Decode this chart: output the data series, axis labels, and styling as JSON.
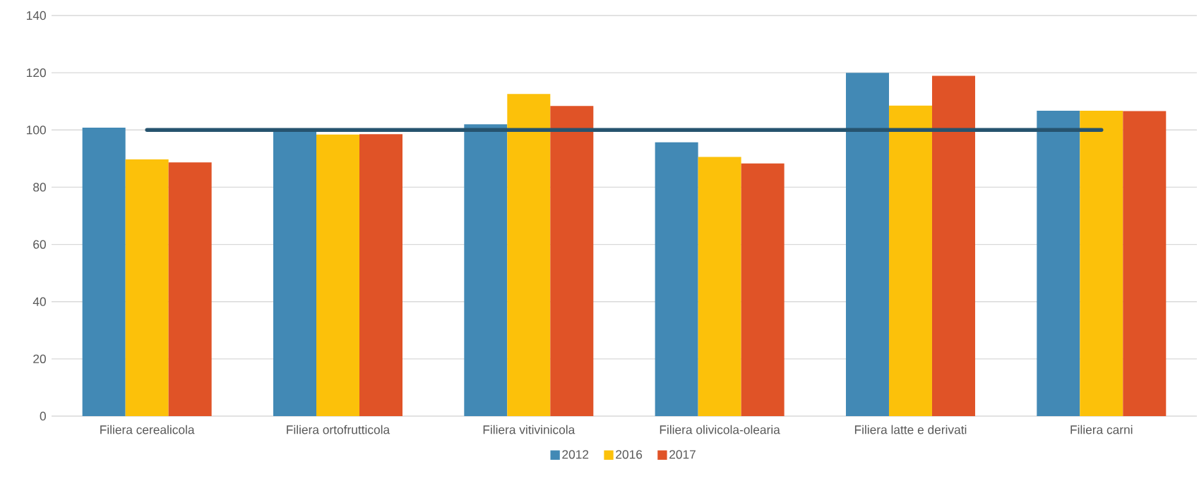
{
  "chart_data": {
    "type": "bar",
    "categories": [
      "Filiera cerealicola",
      "Filiera ortofrutticola",
      "Filiera vitivinicola",
      "Filiera olivicola-olearia",
      "Filiera latte e derivati",
      "Filiera carni"
    ],
    "series": [
      {
        "name": "2012",
        "color": "#4289b5",
        "values": [
          100.8,
          99.9,
          102.0,
          95.7,
          120.0,
          106.7
        ]
      },
      {
        "name": "2016",
        "color": "#fcc10a",
        "values": [
          89.7,
          98.4,
          112.6,
          90.6,
          108.5,
          106.7
        ]
      },
      {
        "name": "2017",
        "color": "#e05327",
        "values": [
          88.7,
          98.5,
          108.4,
          88.3,
          118.9,
          106.6
        ]
      },
      {
        "type": "line",
        "color": "#26536e",
        "line_style": "solid",
        "values": [
          100,
          100,
          100,
          100,
          100,
          100
        ]
      }
    ],
    "ylim": [
      0,
      140
    ],
    "yticks": [
      0,
      20,
      40,
      60,
      80,
      100,
      120,
      140
    ],
    "grid": "y",
    "legend": "bottom"
  }
}
